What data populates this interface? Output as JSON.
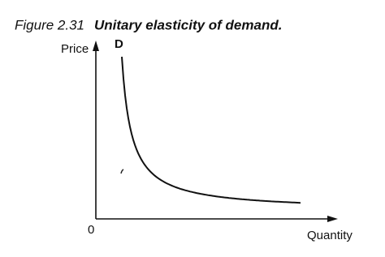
{
  "figure": {
    "label": "Figure 2.31",
    "title": "Unitary elasticity of demand."
  },
  "axes": {
    "y_label": "Price",
    "x_label": "Quantity",
    "origin": "0"
  },
  "curve": {
    "label": "D"
  }
}
